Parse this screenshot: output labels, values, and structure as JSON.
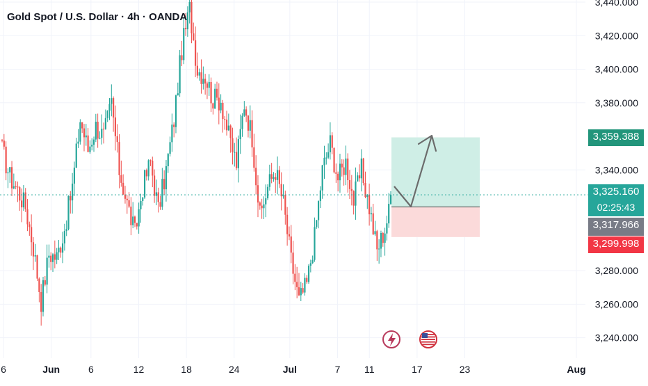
{
  "title": "Gold Spot / U.S. Dollar · 4h · OANDA",
  "colors": {
    "up": "#26a69a",
    "down": "#ef5350",
    "grid": "#f0f3fa",
    "axis_text": "#131722",
    "current_line": "#26a69a",
    "target_zone": "#cfeee6",
    "stop_zone": "#fbdada",
    "arrow": "#6b6b6b",
    "tag_target": "#22957b",
    "tag_current": "#26a69a",
    "tag_entry": "#787b86",
    "tag_stop": "#f23645"
  },
  "chart_data": {
    "type": "candlestick",
    "symbol": "Gold Spot / U.S. Dollar",
    "interval": "4h",
    "source": "OANDA",
    "y_ticks": [
      "3,440.000",
      "3,420.000",
      "3,400.000",
      "3,380.000",
      "3,340.000",
      "3,280.000",
      "3,260.000",
      "3,240.000"
    ],
    "y_tick_values": [
      3440,
      3420,
      3400,
      3380,
      3340,
      3280,
      3260,
      3240
    ],
    "ylim": [
      3236,
      3442
    ],
    "x_ticks": [
      "6",
      "Jun",
      "6",
      "12",
      "18",
      "24",
      "Jul",
      "7",
      "11",
      "17",
      "23",
      "Aug"
    ],
    "x_tick_dates": [
      "2025-05-26",
      "2025-06-01",
      "2025-06-06",
      "2025-06-12",
      "2025-06-18",
      "2025-06-24",
      "2025-07-01",
      "2025-07-07",
      "2025-07-11",
      "2025-07-17",
      "2025-07-23",
      "2025-08-01"
    ],
    "price_path": [
      [
        3352,
        3358
      ],
      [
        3336,
        3350
      ],
      [
        3328,
        3332
      ],
      [
        3318,
        3312
      ],
      [
        3294,
        3296
      ],
      [
        3262,
        3252
      ],
      [
        3290,
        3300
      ],
      [
        3288,
        3296
      ],
      [
        3305,
        3300
      ],
      [
        3330,
        3345
      ],
      [
        3370,
        3385
      ],
      [
        3352,
        3360
      ],
      [
        3366,
        3378
      ],
      [
        3360,
        3350
      ],
      [
        3380,
        3375
      ],
      [
        3340,
        3330
      ],
      [
        3320,
        3312
      ],
      [
        3302,
        3310
      ],
      [
        3330,
        3348
      ],
      [
        3345,
        3322
      ],
      [
        3316,
        3310
      ],
      [
        3340,
        3352
      ],
      [
        3370,
        3390
      ],
      [
        3412,
        3425
      ],
      [
        3436,
        3425
      ],
      [
        3400,
        3395
      ],
      [
        3396,
        3385
      ],
      [
        3382,
        3378
      ],
      [
        3382,
        3375
      ],
      [
        3360,
        3356
      ],
      [
        3344,
        3350
      ],
      [
        3380,
        3376
      ],
      [
        3360,
        3338
      ],
      [
        3312,
        3306
      ],
      [
        3330,
        3325
      ],
      [
        3340,
        3335
      ],
      [
        3320,
        3310
      ],
      [
        3286,
        3275
      ],
      [
        3262,
        3250
      ],
      [
        3272,
        3282
      ],
      [
        3300,
        3325
      ],
      [
        3340,
        3350
      ],
      [
        3356,
        3350
      ],
      [
        3335,
        3326
      ],
      [
        3345,
        3338
      ],
      [
        3322,
        3316
      ],
      [
        3340,
        3332
      ],
      [
        3318,
        3306
      ],
      [
        3292,
        3286
      ],
      [
        3305,
        3316
      ],
      [
        3325,
        3325.16
      ]
    ],
    "current": {
      "price": 3325.16,
      "label": "3,325.160",
      "countdown": "02:25:43"
    },
    "position": {
      "type": "long",
      "entry": 3317.966,
      "entry_label": "3,317.966",
      "target": 3359.388,
      "target_label": "3,359.388",
      "stop": 3299.998,
      "stop_label": "3,299.998"
    },
    "events": [
      {
        "icon": "lightning-icon",
        "date_label": "11"
      },
      {
        "icon": "us-flag-icon",
        "date_label": "17"
      }
    ]
  }
}
